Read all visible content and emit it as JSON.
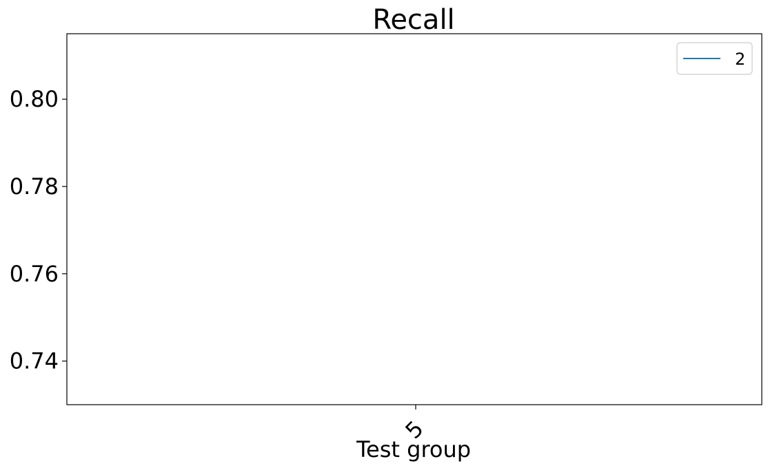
{
  "chart_data": {
    "type": "line",
    "title": "Recall",
    "xlabel": "Test group",
    "ylabel": "",
    "categories": [
      "5"
    ],
    "ylim": [
      0.73,
      0.815
    ],
    "yticks": [
      0.74,
      0.76,
      0.78,
      0.8
    ],
    "ytick_labels": [
      "0.74",
      "0.76",
      "0.78",
      "0.80"
    ],
    "series": [
      {
        "name": "2",
        "values": [
          null
        ],
        "color": "#1f77b4"
      }
    ],
    "grid": false,
    "legend": "top-right"
  }
}
